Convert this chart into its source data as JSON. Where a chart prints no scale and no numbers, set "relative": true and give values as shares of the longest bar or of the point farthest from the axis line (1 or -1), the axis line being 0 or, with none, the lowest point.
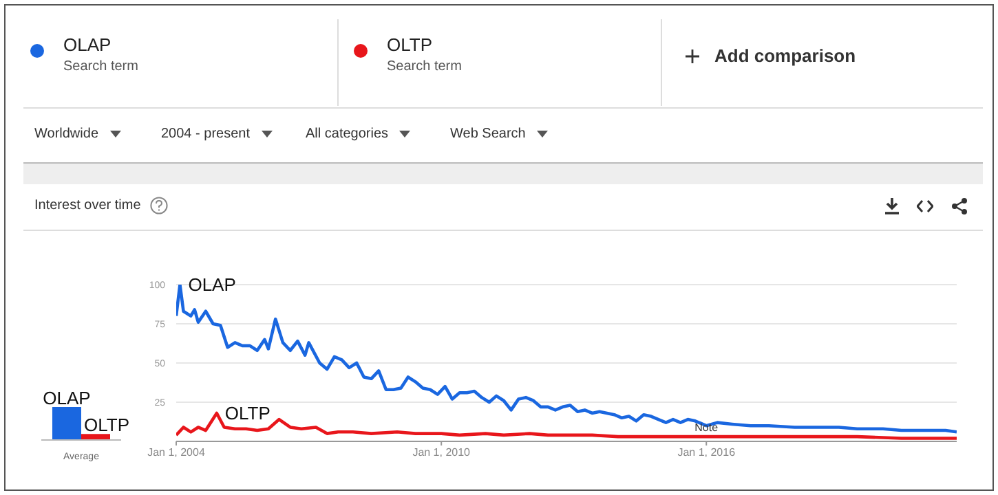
{
  "chart_data": [
    {
      "type": "line",
      "title": "Interest over time",
      "legend": "top",
      "grid": "y",
      "marker": "none",
      "line_style": "solid",
      "annotations": [
        "Search term",
        "Search term",
        "Add comparison",
        "Worldwide",
        "2004 - present",
        "All categories",
        "Web Search",
        {
          "text": "Note",
          "x": "2016-01-01",
          "y": 4
        }
      ],
      "xlim": [
        "2004-01-01",
        "2021-09-01"
      ],
      "xticks": [
        {
          "value": "2004-01-01",
          "label": "Jan 1, 2004"
        },
        {
          "value": "2010-01-01",
          "label": "Jan 1, 2010"
        },
        {
          "value": "2016-01-01",
          "label": "Jan 1, 2016"
        }
      ],
      "ylim": [
        0,
        100
      ],
      "yticks": [
        {
          "value": 0,
          "label": null
        },
        25,
        50,
        75,
        100
      ],
      "series": [
        {
          "name": "OLAP",
          "color": "#1a67e0",
          "x": [
            "2004-01",
            "2004-02",
            "2004-03",
            "2004-05",
            "2004-06",
            "2004-07",
            "2004-09",
            "2004-11",
            "2005-01",
            "2005-03",
            "2005-05",
            "2005-07",
            "2005-09",
            "2005-11",
            "2006-01",
            "2006-02",
            "2006-04",
            "2006-06",
            "2006-08",
            "2006-10",
            "2006-12",
            "2007-01",
            "2007-04",
            "2007-06",
            "2007-08",
            "2007-10",
            "2007-12",
            "2008-02",
            "2008-04",
            "2008-06",
            "2008-08",
            "2008-10",
            "2008-12",
            "2009-02",
            "2009-04",
            "2009-06",
            "2009-08",
            "2009-10",
            "2009-12",
            "2010-02",
            "2010-04",
            "2010-06",
            "2010-08",
            "2010-10",
            "2010-12",
            "2011-02",
            "2011-04",
            "2011-06",
            "2011-08",
            "2011-10",
            "2011-12",
            "2012-02",
            "2012-04",
            "2012-06",
            "2012-08",
            "2012-10",
            "2012-12",
            "2013-02",
            "2013-04",
            "2013-06",
            "2013-08",
            "2013-10",
            "2013-12",
            "2014-02",
            "2014-04",
            "2014-06",
            "2014-08",
            "2014-10",
            "2014-12",
            "2015-02",
            "2015-04",
            "2015-06",
            "2015-08",
            "2015-10",
            "2016-01",
            "2016-04",
            "2016-08",
            "2017-01",
            "2017-06",
            "2018-01",
            "2018-06",
            "2019-01",
            "2019-06",
            "2020-01",
            "2020-06",
            "2021-01",
            "2021-06",
            "2021-09"
          ],
          "values": [
            80,
            100,
            83,
            80,
            84,
            76,
            83,
            75,
            74,
            60,
            63,
            61,
            61,
            58,
            65,
            59,
            78,
            63,
            58,
            64,
            55,
            63,
            50,
            46,
            54,
            52,
            47,
            50,
            41,
            40,
            45,
            33,
            33,
            34,
            41,
            38,
            34,
            33,
            30,
            35,
            27,
            31,
            31,
            32,
            28,
            25,
            29,
            26,
            20,
            27,
            28,
            26,
            22,
            22,
            20,
            22,
            23,
            19,
            20,
            18,
            19,
            18,
            17,
            15,
            16,
            13,
            17,
            16,
            14,
            12,
            14,
            12,
            14,
            13,
            10,
            12,
            11,
            10,
            10,
            9,
            9,
            9,
            8,
            8,
            7,
            7,
            7,
            6
          ]
        },
        {
          "name": "OLTP",
          "color": "#e8161b",
          "x": [
            "2004-01",
            "2004-03",
            "2004-05",
            "2004-07",
            "2004-09",
            "2004-12",
            "2005-02",
            "2005-05",
            "2005-08",
            "2005-11",
            "2006-02",
            "2006-05",
            "2006-08",
            "2006-11",
            "2007-03",
            "2007-06",
            "2007-09",
            "2008-01",
            "2008-06",
            "2009-01",
            "2009-06",
            "2010-01",
            "2010-06",
            "2011-01",
            "2011-06",
            "2012-01",
            "2012-06",
            "2013-01",
            "2013-06",
            "2014-01",
            "2014-06",
            "2015-01",
            "2015-06",
            "2016-01",
            "2016-06",
            "2017-01",
            "2018-01",
            "2019-01",
            "2019-06",
            "2020-06",
            "2021-01",
            "2021-09"
          ],
          "values": [
            4,
            9,
            6,
            9,
            7,
            18,
            9,
            8,
            8,
            7,
            8,
            14,
            9,
            8,
            9,
            5,
            6,
            6,
            5,
            6,
            5,
            5,
            4,
            5,
            4,
            5,
            4,
            4,
            4,
            3,
            3,
            3,
            3,
            3,
            3,
            3,
            3,
            3,
            3,
            2,
            2,
            2
          ]
        }
      ]
    },
    {
      "type": "bar",
      "relative": true,
      "xlabel": "Average",
      "categories": [
        null
      ],
      "series": [
        {
          "name": "OLAP",
          "color": "#1a67e0",
          "values": [
            1
          ]
        },
        {
          "name": "OLTP",
          "color": "#e8161b",
          "values": [
            0.18
          ]
        }
      ]
    }
  ]
}
